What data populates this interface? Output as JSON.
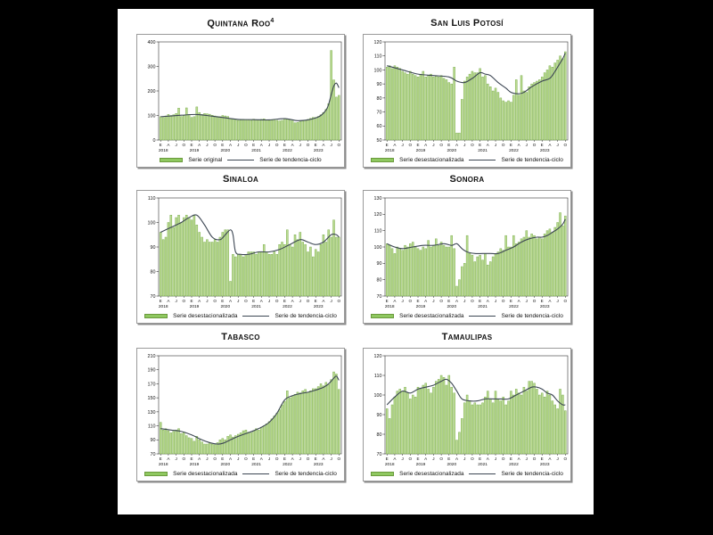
{
  "page": {
    "background": "#000000",
    "sheet_background": "#ffffff"
  },
  "colors": {
    "bar_fill": "#bada90",
    "bar_edge": "#77ab4a",
    "trend_line": "#3c4653",
    "axis": "#333333",
    "text": "#111111",
    "panel_border": "#9a9a9a"
  },
  "x_axis": {
    "month_tick_cycle": [
      "E",
      "A",
      "J",
      "O"
    ],
    "years": [
      "2018",
      "2019",
      "2020",
      "2021",
      "2022",
      "2023"
    ],
    "months_per_year": 12,
    "last_year_months": 10
  },
  "chart_data": [
    {
      "type": "bar",
      "title": "Quintana Roo",
      "title_sup": "4",
      "legend_bar": "Serie original",
      "legend_line": "Serie de tendencia-ciclo",
      "axis": {
        "min": 0,
        "max": 400,
        "step": 100
      },
      "values": [
        95,
        92,
        98,
        104,
        100,
        103,
        108,
        130,
        96,
        99,
        131,
        104,
        92,
        95,
        135,
        112,
        104,
        108,
        107,
        105,
        101,
        98,
        96,
        95,
        100,
        98,
        96,
        88,
        84,
        82,
        80,
        82,
        84,
        83,
        82,
        80,
        85,
        83,
        82,
        84,
        86,
        83,
        80,
        82,
        84,
        80,
        78,
        80,
        88,
        85,
        83,
        78,
        70,
        72,
        75,
        78,
        80,
        84,
        88,
        92,
        92,
        96,
        103,
        112,
        125,
        148,
        365,
        245,
        175,
        182
      ],
      "trend_keypoints": [
        [
          0,
          95
        ],
        [
          8,
          101
        ],
        [
          14,
          104
        ],
        [
          20,
          97
        ],
        [
          26,
          89
        ],
        [
          30,
          84
        ],
        [
          36,
          83
        ],
        [
          42,
          82
        ],
        [
          48,
          87
        ],
        [
          53,
          79
        ],
        [
          57,
          82
        ],
        [
          60,
          90
        ],
        [
          62,
          100
        ],
        [
          64,
          122
        ],
        [
          65,
          145
        ],
        [
          66,
          185
        ],
        [
          67,
          220
        ],
        [
          68,
          232
        ],
        [
          69,
          213
        ]
      ]
    },
    {
      "type": "bar",
      "title": "San Luis Potosí",
      "legend_bar": "Serie desestacionalizada",
      "legend_line": "Serie de tendencia-ciclo",
      "axis": {
        "min": 50,
        "max": 120,
        "step": 10
      },
      "values": [
        102,
        103,
        101,
        103,
        102,
        101,
        99,
        98,
        97,
        99,
        97,
        96,
        95,
        97,
        99,
        95,
        96,
        97,
        95,
        96,
        95,
        96,
        94,
        93,
        91,
        90,
        102,
        55,
        55,
        79,
        92,
        95,
        97,
        99,
        98,
        98,
        101,
        95,
        96,
        90,
        88,
        85,
        87,
        84,
        80,
        78,
        77,
        78,
        77,
        82,
        93,
        82,
        96,
        85,
        84,
        88,
        90,
        91,
        92,
        93,
        95,
        98,
        100,
        103,
        102,
        105,
        107,
        110,
        108,
        113
      ],
      "trend_keypoints": [
        [
          0,
          103
        ],
        [
          6,
          100
        ],
        [
          12,
          97
        ],
        [
          18,
          96
        ],
        [
          24,
          95
        ],
        [
          27,
          92
        ],
        [
          30,
          91
        ],
        [
          33,
          94
        ],
        [
          36,
          98
        ],
        [
          38,
          97
        ],
        [
          40,
          96
        ],
        [
          43,
          91
        ],
        [
          46,
          87
        ],
        [
          48,
          84
        ],
        [
          51,
          83
        ],
        [
          53,
          84
        ],
        [
          56,
          88
        ],
        [
          60,
          92
        ],
        [
          63,
          94
        ],
        [
          65,
          99
        ],
        [
          67,
          105
        ],
        [
          68,
          108
        ],
        [
          69,
          112
        ]
      ]
    },
    {
      "type": "bar",
      "title": "Sinaloa",
      "legend_bar": "Serie desestacionalizada",
      "legend_line": "Serie de tendencia-ciclo",
      "axis": {
        "min": 70,
        "max": 110,
        "step": 10
      },
      "values": [
        96,
        93,
        94,
        100,
        103,
        98,
        102,
        103,
        100,
        102,
        103,
        102,
        101,
        103,
        99,
        96,
        94,
        92,
        93,
        92,
        92,
        93,
        92,
        94,
        96,
        97,
        97,
        76,
        87,
        86,
        87,
        87,
        86,
        87,
        88,
        88,
        88,
        87,
        88,
        88,
        91,
        88,
        87,
        87,
        88,
        87,
        91,
        92,
        91,
        97,
        91,
        90,
        95,
        93,
        96,
        92,
        91,
        88,
        90,
        86,
        89,
        88,
        91,
        95,
        92,
        97,
        94,
        101,
        94,
        94
      ],
      "trend_keypoints": [
        [
          0,
          96
        ],
        [
          4,
          98
        ],
        [
          8,
          100
        ],
        [
          11,
          102
        ],
        [
          14,
          103
        ],
        [
          17,
          99
        ],
        [
          20,
          94
        ],
        [
          23,
          93
        ],
        [
          25,
          95
        ],
        [
          27,
          97
        ],
        [
          28,
          95
        ],
        [
          29,
          88
        ],
        [
          31,
          87
        ],
        [
          34,
          87
        ],
        [
          38,
          88
        ],
        [
          42,
          88
        ],
        [
          46,
          89
        ],
        [
          50,
          91
        ],
        [
          54,
          93
        ],
        [
          57,
          92
        ],
        [
          60,
          91
        ],
        [
          63,
          92
        ],
        [
          66,
          95
        ],
        [
          68,
          95
        ],
        [
          69,
          94
        ]
      ]
    },
    {
      "type": "bar",
      "title": "Sonora",
      "legend_bar": "Serie desestacionalizada",
      "legend_line": "Serie de tendencia-ciclo",
      "axis": {
        "min": 70,
        "max": 130,
        "step": 10
      },
      "values": [
        102,
        101,
        99,
        96,
        100,
        99,
        98,
        101,
        100,
        102,
        103,
        100,
        99,
        98,
        100,
        99,
        104,
        100,
        101,
        105,
        101,
        103,
        101,
        100,
        100,
        107,
        99,
        76,
        80,
        88,
        90,
        107,
        96,
        95,
        91,
        94,
        95,
        92,
        96,
        89,
        91,
        94,
        96,
        97,
        99,
        98,
        107,
        100,
        100,
        107,
        102,
        103,
        105,
        106,
        110,
        106,
        108,
        107,
        105,
        106,
        105,
        108,
        110,
        111,
        109,
        112,
        115,
        121,
        113,
        119
      ],
      "trend_keypoints": [
        [
          0,
          102
        ],
        [
          3,
          100
        ],
        [
          6,
          99
        ],
        [
          10,
          100
        ],
        [
          14,
          101
        ],
        [
          18,
          101
        ],
        [
          22,
          102
        ],
        [
          25,
          101
        ],
        [
          27,
          102
        ],
        [
          29,
          99
        ],
        [
          31,
          97
        ],
        [
          34,
          96
        ],
        [
          37,
          96
        ],
        [
          40,
          96
        ],
        [
          43,
          96
        ],
        [
          46,
          98
        ],
        [
          49,
          100
        ],
        [
          52,
          103
        ],
        [
          55,
          105
        ],
        [
          58,
          106
        ],
        [
          60,
          106
        ],
        [
          62,
          107
        ],
        [
          64,
          109
        ],
        [
          66,
          111
        ],
        [
          68,
          114
        ],
        [
          69,
          117
        ]
      ]
    },
    {
      "type": "bar",
      "title": "Tabasco",
      "legend_bar": "Serie desestacionalizada",
      "legend_line": "Serie de tendencia-ciclo",
      "axis": {
        "min": 70,
        "max": 210,
        "step": 20
      },
      "values": [
        115,
        104,
        106,
        103,
        100,
        102,
        104,
        106,
        99,
        101,
        96,
        93,
        92,
        88,
        95,
        90,
        87,
        84,
        84,
        86,
        84,
        83,
        86,
        90,
        92,
        90,
        95,
        97,
        94,
        96,
        98,
        100,
        103,
        104,
        101,
        100,
        103,
        106,
        104,
        108,
        110,
        113,
        116,
        120,
        124,
        128,
        133,
        140,
        145,
        160,
        150,
        153,
        155,
        158,
        157,
        160,
        162,
        158,
        160,
        163,
        163,
        166,
        170,
        167,
        172,
        169,
        176,
        187,
        184,
        162
      ],
      "trend_keypoints": [
        [
          0,
          106
        ],
        [
          4,
          104
        ],
        [
          8,
          102
        ],
        [
          12,
          97
        ],
        [
          16,
          90
        ],
        [
          19,
          86
        ],
        [
          22,
          84
        ],
        [
          24,
          85
        ],
        [
          27,
          90
        ],
        [
          30,
          95
        ],
        [
          33,
          99
        ],
        [
          36,
          103
        ],
        [
          39,
          108
        ],
        [
          42,
          115
        ],
        [
          45,
          128
        ],
        [
          48,
          147
        ],
        [
          51,
          153
        ],
        [
          54,
          156
        ],
        [
          57,
          158
        ],
        [
          60,
          161
        ],
        [
          63,
          165
        ],
        [
          65,
          170
        ],
        [
          67,
          178
        ],
        [
          68,
          181
        ],
        [
          69,
          175
        ]
      ]
    },
    {
      "type": "bar",
      "title": "Tamaulipas",
      "legend_bar": "Serie desestacionalizada",
      "legend_line": "Serie de tendencia-ciclo",
      "axis": {
        "min": 70,
        "max": 120,
        "step": 10
      },
      "values": [
        93,
        88,
        95,
        99,
        102,
        103,
        102,
        104,
        101,
        98,
        100,
        99,
        104,
        103,
        105,
        106,
        103,
        101,
        104,
        107,
        108,
        110,
        109,
        105,
        110,
        104,
        101,
        77,
        81,
        88,
        96,
        100,
        97,
        95,
        96,
        95,
        95,
        96,
        99,
        102,
        98,
        96,
        102,
        98,
        97,
        99,
        95,
        97,
        102,
        100,
        103,
        101,
        100,
        104,
        102,
        107,
        107,
        106,
        103,
        100,
        101,
        99,
        102,
        100,
        97,
        95,
        93,
        103,
        100,
        92
      ],
      "trend_keypoints": [
        [
          0,
          95
        ],
        [
          3,
          99
        ],
        [
          6,
          102
        ],
        [
          9,
          101
        ],
        [
          12,
          103
        ],
        [
          15,
          104
        ],
        [
          18,
          105
        ],
        [
          21,
          107
        ],
        [
          23,
          108
        ],
        [
          25,
          106
        ],
        [
          27,
          102
        ],
        [
          29,
          98
        ],
        [
          32,
          97
        ],
        [
          35,
          97
        ],
        [
          38,
          98
        ],
        [
          41,
          98
        ],
        [
          44,
          98
        ],
        [
          47,
          98
        ],
        [
          50,
          100
        ],
        [
          53,
          102
        ],
        [
          56,
          104
        ],
        [
          58,
          104
        ],
        [
          60,
          103
        ],
        [
          62,
          101
        ],
        [
          64,
          100
        ],
        [
          66,
          97
        ],
        [
          68,
          95
        ],
        [
          69,
          95
        ]
      ]
    }
  ]
}
